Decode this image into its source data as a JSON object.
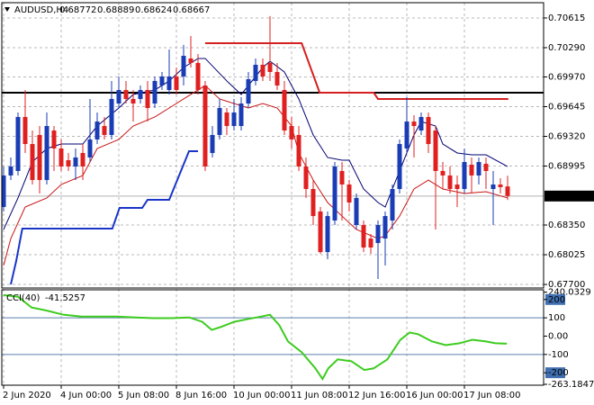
{
  "chart_data": [
    {
      "type": "candlestick",
      "title": "AUDUSD,H4",
      "categories": [
        "2 Jun 2020",
        null,
        null,
        null,
        null,
        null,
        null,
        null,
        "4 Jun 00:00",
        null,
        null,
        null,
        null,
        null,
        null,
        null,
        "5 Jun 08:00",
        null,
        null,
        null,
        null,
        null,
        null,
        null,
        "8 Jun 16:00",
        null,
        null,
        null,
        null,
        null,
        null,
        null,
        "10 Jun 00:00",
        null,
        null,
        null,
        null,
        null,
        null,
        null,
        "11 Jun 08:00",
        null,
        null,
        null,
        null,
        null,
        null,
        null,
        "12 Jun 16:00",
        null,
        null,
        null,
        null,
        null,
        null,
        null,
        "16 Jun 00:00",
        null,
        null,
        null,
        null,
        null,
        null,
        null,
        "17 Jun 08:00",
        null,
        null,
        null,
        null,
        null,
        null
      ],
      "open": [
        0.68547,
        0.68892,
        0.68941,
        0.69532,
        0.69236,
        0.69335,
        0.68842,
        0.69384,
        0.69187,
        0.69059,
        0.6899,
        0.69138,
        0.69089,
        0.69286,
        0.69433,
        0.69335,
        0.69679,
        0.69827,
        0.69729,
        0.69729,
        0.69827,
        0.69679,
        0.69876,
        0.69827,
        0.69975,
        0.69975,
        0.70172,
        0.70123,
        0.69876,
        0.69138,
        0.69335,
        0.69581,
        0.69433,
        0.69433,
        0.69679,
        0.69926,
        0.70103,
        0.70123,
        0.70024,
        0.69827,
        0.69433,
        0.69335,
        0.6899,
        0.68744,
        0.68498,
        0.68054,
        0.68399,
        0.68941,
        0.68793,
        0.6835,
        0.6835,
        0.68202,
        0.68153,
        0.68202,
        0.68399,
        0.68744,
        0.69187,
        0.69482,
        0.69384,
        0.69532,
        0.69384,
        0.68941,
        0.68892,
        0.68793,
        0.68744,
        0.6901,
        0.68892,
        0.6902,
        0.68744,
        0.68793,
        0.68772
      ],
      "high": [
        0.6899,
        0.69089,
        0.69581,
        0.69827,
        0.69384,
        0.69433,
        0.69581,
        0.69433,
        0.69286,
        0.69138,
        0.69187,
        0.69236,
        0.69729,
        0.69581,
        0.69532,
        0.69926,
        0.69975,
        0.69926,
        0.69827,
        0.69876,
        0.69926,
        0.69975,
        0.70024,
        0.7027,
        0.70073,
        0.7032,
        0.70418,
        0.70221,
        0.69926,
        0.69433,
        0.69729,
        0.6963,
        0.69729,
        0.69748,
        0.70024,
        0.70172,
        0.70172,
        0.70635,
        0.70123,
        0.69926,
        0.69532,
        0.69433,
        0.69089,
        0.68842,
        0.68547,
        0.68498,
        0.69039,
        0.69039,
        0.68842,
        0.68695,
        0.68399,
        0.68251,
        0.68399,
        0.68498,
        0.68793,
        0.69286,
        0.69748,
        0.69551,
        0.69581,
        0.69581,
        0.69433,
        0.69039,
        0.6899,
        0.68892,
        0.69187,
        0.69089,
        0.69089,
        0.69089,
        0.68941,
        0.68862,
        0.68889
      ],
      "low": [
        0.68498,
        0.68842,
        0.68892,
        0.69138,
        0.68793,
        0.68695,
        0.68793,
        0.68941,
        0.68941,
        0.68941,
        0.68842,
        0.68842,
        0.69039,
        0.69236,
        0.69286,
        0.69286,
        0.6963,
        0.69679,
        0.69482,
        0.69679,
        0.69482,
        0.6963,
        0.69827,
        0.69778,
        0.69778,
        0.69876,
        0.70073,
        0.69778,
        0.68941,
        0.69089,
        0.69286,
        0.69335,
        0.69384,
        0.69384,
        0.6963,
        0.69876,
        0.69926,
        0.69926,
        0.69827,
        0.69335,
        0.69187,
        0.68941,
        0.68646,
        0.6835,
        0.68035,
        0.67976,
        0.6835,
        0.68399,
        0.68498,
        0.68301,
        0.68054,
        0.68035,
        0.67759,
        0.67907,
        0.68301,
        0.68695,
        0.69138,
        0.69089,
        0.69335,
        0.69138,
        0.68301,
        0.68744,
        0.68695,
        0.68547,
        0.68695,
        0.68695,
        0.68793,
        0.68744,
        0.6835,
        0.68695,
        0.68624
      ],
      "close": [
        0.68892,
        0.6899,
        0.69532,
        0.69236,
        0.68842,
        0.68842,
        0.69433,
        0.69187,
        0.6899,
        0.6899,
        0.69089,
        0.6899,
        0.69286,
        0.69482,
        0.69335,
        0.69729,
        0.69827,
        0.69729,
        0.69679,
        0.69827,
        0.6963,
        0.69926,
        0.69975,
        0.69975,
        0.69827,
        0.70201,
        0.70123,
        0.69827,
        0.6899,
        0.69335,
        0.6963,
        0.69433,
        0.69581,
        0.69679,
        0.69945,
        0.70103,
        0.69975,
        0.70024,
        0.69876,
        0.69384,
        0.69286,
        0.6899,
        0.68744,
        0.68448,
        0.68054,
        0.68448,
        0.6899,
        0.68793,
        0.68596,
        0.68646,
        0.68104,
        0.68104,
        0.6835,
        0.68448,
        0.68744,
        0.69236,
        0.69482,
        0.69433,
        0.69532,
        0.69236,
        0.68941,
        0.68892,
        0.68744,
        0.68744,
        0.69039,
        0.68892,
        0.69039,
        0.68941,
        0.68793,
        0.68764,
        0.68667
      ],
      "up_color": "#1a3cb4",
      "down_color": "#e02020",
      "lines": [
        {
          "color": "#000070",
          "width": 1,
          "x": [
            0,
            2,
            4,
            6,
            8,
            11,
            13,
            16,
            18,
            21,
            23,
            25,
            27,
            28,
            31,
            33,
            36,
            37,
            39,
            41,
            43,
            45,
            47,
            48,
            50,
            52,
            53,
            55,
            57,
            58,
            60,
            61,
            63,
            65,
            67,
            70
          ],
          "values": [
            0.68301,
            0.68646,
            0.69039,
            0.69187,
            0.69236,
            0.69236,
            0.69433,
            0.6963,
            0.69778,
            0.69827,
            0.69926,
            0.70073,
            0.70172,
            0.70172,
            0.69926,
            0.69778,
            0.70073,
            0.70142,
            0.70024,
            0.69729,
            0.69335,
            0.69089,
            0.69059,
            0.69059,
            0.68744,
            0.68596,
            0.68547,
            0.68941,
            0.69335,
            0.69482,
            0.69433,
            0.69236,
            0.69138,
            0.69118,
            0.69118,
            0.6899
          ]
        },
        {
          "color": "#c81414",
          "width": 1,
          "x": [
            0,
            1,
            3,
            6,
            8,
            11,
            13,
            16,
            18,
            21,
            23,
            26,
            28,
            30,
            32,
            34,
            36,
            38,
            40,
            41,
            43,
            45,
            47,
            49,
            52,
            53,
            55,
            57,
            59,
            61,
            64,
            67,
            70
          ],
          "values": [
            0.67907,
            0.68202,
            0.68547,
            0.68646,
            0.68793,
            0.68892,
            0.69187,
            0.69286,
            0.69433,
            0.69532,
            0.6963,
            0.69778,
            0.69876,
            0.69729,
            0.69679,
            0.6963,
            0.69679,
            0.6963,
            0.69433,
            0.69138,
            0.68842,
            0.68596,
            0.68448,
            0.68301,
            0.68202,
            0.68232,
            0.68448,
            0.68744,
            0.68842,
            0.68744,
            0.68695,
            0.68714,
            0.68646
          ]
        },
        {
          "color": "#1a35c8",
          "width": 2,
          "x": [
            1,
            1.75,
            2.6,
            15.1,
            16.1,
            19.25,
            20,
            23,
            25.75,
            27
          ],
          "values": [
            0.677,
            0.67956,
            0.68311,
            0.68311,
            0.68537,
            0.68537,
            0.68626,
            0.68626,
            0.69158,
            0.69158
          ]
        },
        {
          "color": "#d42020",
          "width": 2,
          "x": [
            28,
            41.4,
            43.9,
            51.4,
            52,
            70.1
          ],
          "values": [
            0.70339,
            0.70339,
            0.69798,
            0.69798,
            0.69729,
            0.69729
          ]
        }
      ],
      "hlines": [
        {
          "value": 0.69798,
          "color": "#000000",
          "width": 2
        },
        {
          "value": 0.68667,
          "color": "#b0b0b0",
          "width": 1
        }
      ],
      "ylim": [
        0.67661,
        0.70782
      ],
      "yticks": [
        0.70615,
        {
          "value": 0.7029,
          "label": "0.70290"
        },
        {
          "value": 0.6997,
          "label": "0.69970"
        },
        0.69645,
        {
          "value": 0.6932,
          "label": "0.69320"
        },
        0.68995,
        {
          "value": 0.6835,
          "label": "0.68350"
        },
        0.68025,
        {
          "value": 0.677,
          "label": "0.67700"
        }
      ],
      "grid": true
    },
    {
      "type": "line",
      "title": "CCI(40)",
      "color": "#3ccc1e",
      "x": [
        0,
        2,
        3.9,
        5.8,
        8.3,
        10.8,
        13.3,
        15.8,
        18.3,
        20.8,
        23.3,
        25.8,
        27.6,
        28.9,
        30.1,
        32,
        33.9,
        35.8,
        37,
        38.3,
        39.5,
        41.4,
        43.3,
        44.3,
        45.1,
        46.4,
        48.3,
        50.1,
        51.4,
        53.3,
        55.1,
        56.4,
        57.6,
        59.5,
        61.4,
        63.3,
        65.1,
        67,
        68.3,
        69.9
      ],
      "values": [
        224,
        215,
        156,
        141,
        117,
        107,
        107,
        107,
        102,
        98,
        98,
        102,
        78,
        34,
        49,
        78,
        93,
        107,
        117,
        59,
        -29,
        -88,
        -176,
        -234,
        -176,
        -127,
        -137,
        -185,
        -176,
        -127,
        -20,
        20,
        10,
        -29,
        -49,
        -39,
        -20,
        -29,
        -39,
        -41.5257
      ],
      "ylim": [
        -268,
        253
      ],
      "yticks": [
        240.0329,
        200,
        100,
        {
          "value": 0,
          "label": "0.00"
        },
        -100,
        -200,
        -263.1847
      ],
      "levels": [
        100,
        -100
      ],
      "level_color": "#5a7fae",
      "boxed": [
        200,
        -200
      ],
      "box_color": "#3f6fb0"
    }
  ]
}
